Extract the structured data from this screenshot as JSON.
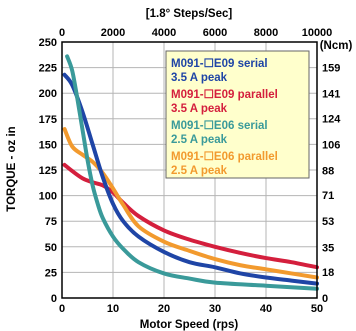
{
  "chart_data": {
    "type": "line",
    "title": "",
    "xlabel": "Motor Speed (rps)",
    "x2label": "[1.8° Steps/Sec]",
    "ylabel": "TORQUE - oz in",
    "y2label": "(Ncm)",
    "xlim": [
      0,
      50
    ],
    "ylim": [
      0,
      250
    ],
    "x_ticks": [
      "0",
      "10",
      "20",
      "30",
      "40",
      "50"
    ],
    "y_ticks": [
      "0",
      "25",
      "50",
      "75",
      "100",
      "125",
      "150",
      "175",
      "200",
      "225",
      "250"
    ],
    "x2_ticks": [
      "0",
      "2000",
      "4000",
      "6000",
      "8000",
      "10000"
    ],
    "y2_ticks": [
      "0",
      "18",
      "35",
      "53",
      "71",
      "88",
      "106",
      "124",
      "141",
      "159"
    ],
    "grid": true,
    "legend_position": "top-right",
    "legend_background": "#FFFFCC",
    "series": [
      {
        "label_line1": "M091-☐E09 serial",
        "label_line2": "3.5 A peak",
        "color": "#1F45A6",
        "x": [
          0.5,
          2,
          4,
          6,
          8,
          10,
          12,
          15,
          20,
          25,
          30,
          35,
          40,
          45,
          50
        ],
        "y": [
          218,
          208,
          182,
          150,
          118,
          92,
          75,
          60,
          45,
          35,
          30,
          24,
          20,
          17,
          14
        ]
      },
      {
        "label_line1": "M091-☐E09 parallel",
        "label_line2": "3.5 A peak",
        "color": "#D41F3D",
        "x": [
          0.5,
          2,
          4,
          6,
          8,
          10,
          12,
          15,
          20,
          25,
          30,
          35,
          40,
          45,
          50
        ],
        "y": [
          130,
          124,
          117,
          113,
          110,
          103,
          93,
          80,
          66,
          57,
          50,
          44,
          39,
          35,
          30
        ]
      },
      {
        "label_line1": "M091-☐E06 serial",
        "label_line2": "2.5 A peak",
        "color": "#3A9A9A",
        "x": [
          1,
          2,
          3,
          4,
          5,
          6,
          7,
          8,
          10,
          12,
          15,
          20,
          25,
          30,
          40,
          50
        ],
        "y": [
          236,
          222,
          195,
          165,
          135,
          110,
          92,
          78,
          60,
          48,
          35,
          24,
          19,
          15,
          12,
          9
        ]
      },
      {
        "label_line1": "M091-☐E06 parallel",
        "label_line2": "2.5 A peak",
        "color": "#F29A2E",
        "x": [
          0.5,
          2,
          4,
          6,
          8,
          10,
          12,
          15,
          20,
          25,
          30,
          35,
          40,
          45,
          50
        ],
        "y": [
          165,
          148,
          140,
          133,
          122,
          107,
          91,
          70,
          55,
          46,
          38,
          32,
          28,
          24,
          20
        ]
      }
    ]
  }
}
